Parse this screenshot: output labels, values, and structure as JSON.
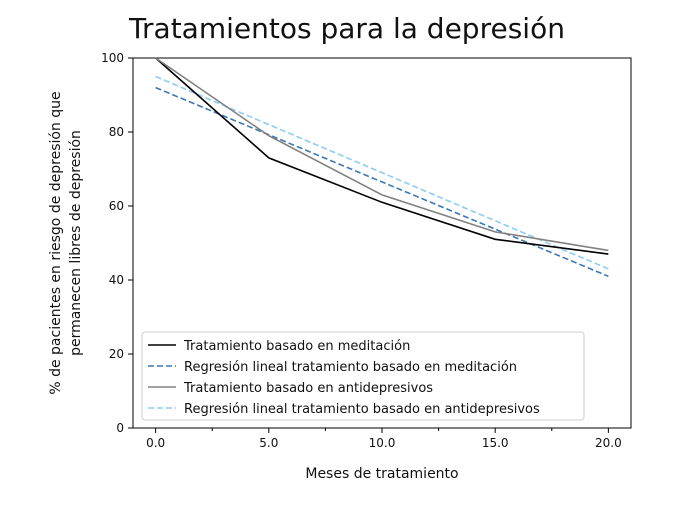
{
  "chart_data": {
    "type": "line",
    "title": "Tratamientos para la depresión",
    "xlabel": "Meses de tratamiento",
    "ylabel_lines": [
      "% de pacientes en riesgo de depresión que",
      "permanecen libres de depresión"
    ],
    "xlim": [
      -1,
      21
    ],
    "ylim": [
      0,
      100
    ],
    "xticks": [
      0,
      5,
      10,
      15,
      20
    ],
    "xtick_labels": [
      "0.0",
      "5.0",
      "10.0",
      "15.0",
      "20.0"
    ],
    "yticks": [
      0,
      20,
      40,
      60,
      80,
      100
    ],
    "ytick_labels": [
      "0",
      "20",
      "40",
      "60",
      "80",
      "100"
    ],
    "legend_position": "lower-left",
    "series": [
      {
        "name": "Tratamiento basado en meditación",
        "color": "#000000",
        "dash": "solid",
        "x": [
          0,
          5,
          10,
          15,
          20
        ],
        "y": [
          100,
          73,
          61,
          51,
          47
        ]
      },
      {
        "name": "Regresión lineal tratamiento basado en meditación",
        "color": "#3a78b5",
        "dash": "dashed",
        "x": [
          0,
          20
        ],
        "y": [
          92,
          41
        ]
      },
      {
        "name": "Tratamiento basado en antidepresivos",
        "color": "#808080",
        "dash": "solid",
        "x": [
          0,
          5,
          10,
          15,
          20
        ],
        "y": [
          100,
          79,
          63,
          53,
          48
        ]
      },
      {
        "name": "Regresión lineal tratamiento basado en antidepresivos",
        "color": "#8ccdf2",
        "dash": "dashed",
        "x": [
          0,
          20
        ],
        "y": [
          95,
          43
        ]
      }
    ]
  }
}
